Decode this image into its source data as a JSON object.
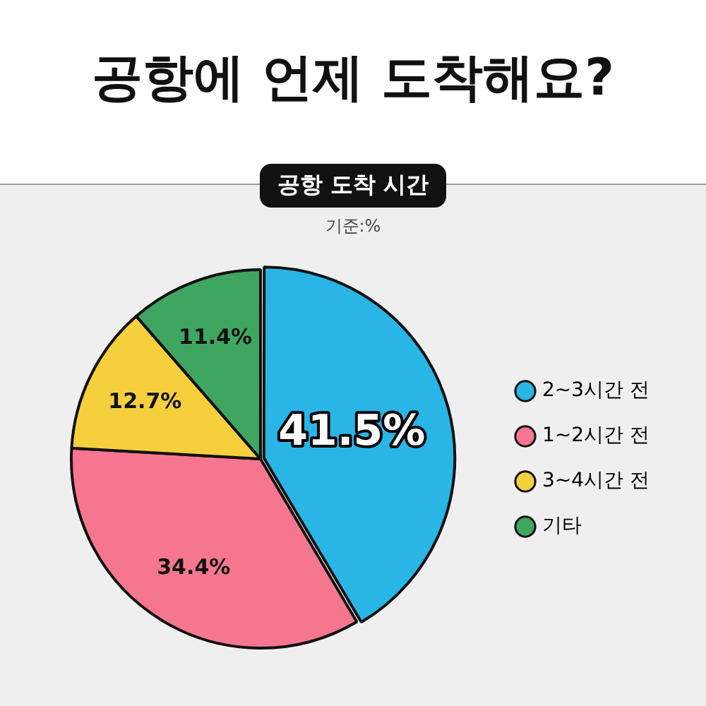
{
  "chart_data": {
    "type": "pie",
    "title": "공항에 언제 도착해요?",
    "subtitle": "공항 도착 시간",
    "annotations": [
      "기준:%"
    ],
    "categories": [
      "2~3시간 전",
      "1~2시간 전",
      "3~4시간 전",
      "기타"
    ],
    "values": [
      41.5,
      34.4,
      12.7,
      11.4
    ],
    "colors": [
      "#29b6e6",
      "#f7768f",
      "#f5d03c",
      "#3fa661"
    ],
    "value_labels": [
      "41.5%",
      "34.4%",
      "12.7%",
      "11.4%"
    ],
    "legend": "right"
  }
}
